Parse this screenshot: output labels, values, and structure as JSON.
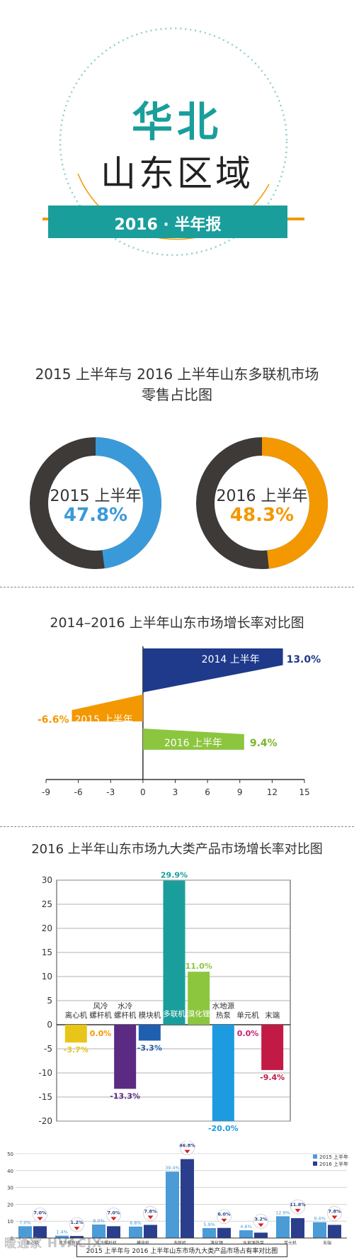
{
  "header": {
    "region": "华北",
    "subregion": "山东区域",
    "banner": "2016 · 半年报",
    "colors": {
      "teal": "#1a9e9b",
      "orange": "#f39800",
      "dotted_ring": "#8fcfcf"
    }
  },
  "donut_section": {
    "title_line1": "2015 上半年与 2016 上半年山东多联机市场",
    "title_line2": "零售占比图",
    "donuts": [
      {
        "label": "2015 上半年",
        "value_text": "47.8%",
        "share": 47.8,
        "color": "#3a9ad9"
      },
      {
        "label": "2016 上半年",
        "value_text": "48.3%",
        "share": 48.3,
        "color": "#f39800"
      }
    ],
    "ring_base_color": "#3d3a38"
  },
  "growth_section": {
    "title": "2014–2016 上半年山东市场增长率对比图"
  },
  "category_section": {
    "title": "2016 上半年山东市场九大类产品市场增长率对比图"
  },
  "share_section": {
    "legend_2015": "2015 上半年",
    "legend_2016": "2016 上半年",
    "caption": "2015 上半年与 2016 上半年山东市场九大类产品市场占有率对比图",
    "watermark": "暖通家 HVACJX"
  },
  "chart_data": [
    {
      "type": "pie",
      "title": "2015 上半年与 2016 上半年山东多联机市场零售占比图",
      "series": [
        {
          "name": "2015 上半年",
          "values": [
            47.8
          ]
        },
        {
          "name": "2016 上半年",
          "values": [
            48.3
          ]
        }
      ]
    },
    {
      "type": "bar",
      "orientation": "horizontal",
      "title": "2014–2016 上半年山东市场增长率对比图",
      "categories": [
        "2014 上半年",
        "2015 上半年",
        "2016 上半年"
      ],
      "values": [
        13.0,
        -6.6,
        9.4
      ],
      "value_labels": [
        "13.0%",
        "-6.6%",
        "9.4%"
      ],
      "colors": [
        "#1f3a8a",
        "#f39800",
        "#8cc63f"
      ],
      "xlim": [
        -9,
        15
      ],
      "xticks": [
        "-9",
        "-6",
        "-3",
        "0",
        "3",
        "6",
        "9",
        "12",
        "15"
      ]
    },
    {
      "type": "bar",
      "title": "2016 上半年山东市场九大类产品市场增长率对比图",
      "categories": [
        "离心机",
        "风冷螺杆机",
        "水冷螺杆机",
        "模块机",
        "多联机",
        "溴化锂",
        "水地源热泵",
        "单元机",
        "末端"
      ],
      "values": [
        -3.7,
        0.0,
        -13.3,
        -3.3,
        29.9,
        11.0,
        -20.0,
        0.0,
        -9.4
      ],
      "value_labels": [
        "-3.7%",
        "0.0%",
        "-13.3%",
        "-3.3%",
        "29.9%",
        "11.0%",
        "-20.0%",
        "0.0%",
        "-9.4%"
      ],
      "colors": [
        "#e8c619",
        "#f39800",
        "#5b2a82",
        "#1f5fb0",
        "#1a9e9b",
        "#8cc63f",
        "#1e9be0",
        "#cc1a6e",
        "#c21a44"
      ],
      "ylim": [
        -20,
        30
      ],
      "yticks": [
        "30",
        "25",
        "20",
        "15",
        "10",
        "5",
        "0",
        "-5",
        "-10",
        "-15",
        "-20"
      ]
    },
    {
      "type": "bar",
      "title": "2015 上半年与 2016 上半年山东市场九大类产品市场占有率对比图",
      "categories": [
        "离心机",
        "风冷螺杆机",
        "水冷螺杆机",
        "模块机",
        "多联机",
        "溴化锂",
        "水地源热泵",
        "单元机",
        "末端"
      ],
      "series": [
        {
          "name": "2015 上半年",
          "values": [
            7.0,
            1.4,
            8.0,
            6.8,
            39.4,
            5.9,
            4.6,
            12.9,
            9.4
          ],
          "value_labels": [
            "7.0%",
            "1.4%",
            "8.0%",
            "6.8%",
            "39.4%",
            "5.9%",
            "4.6%",
            "12.9%",
            "9.4%"
          ],
          "color": "#4a9bd6"
        },
        {
          "name": "2016 上半年",
          "values": [
            7.0,
            1.2,
            7.0,
            7.8,
            46.8,
            6.0,
            3.2,
            11.8,
            7.8
          ],
          "value_labels": [
            "7.0%",
            "1.2%",
            "7.0%",
            "7.8%",
            "46.8%",
            "6.0%",
            "3.2%",
            "11.8%",
            "7.8%"
          ],
          "color": "#2b3e8c"
        }
      ],
      "ylim": [
        0,
        50
      ],
      "yticks": [
        "50",
        "40",
        "30",
        "20",
        "10",
        "0"
      ]
    }
  ]
}
